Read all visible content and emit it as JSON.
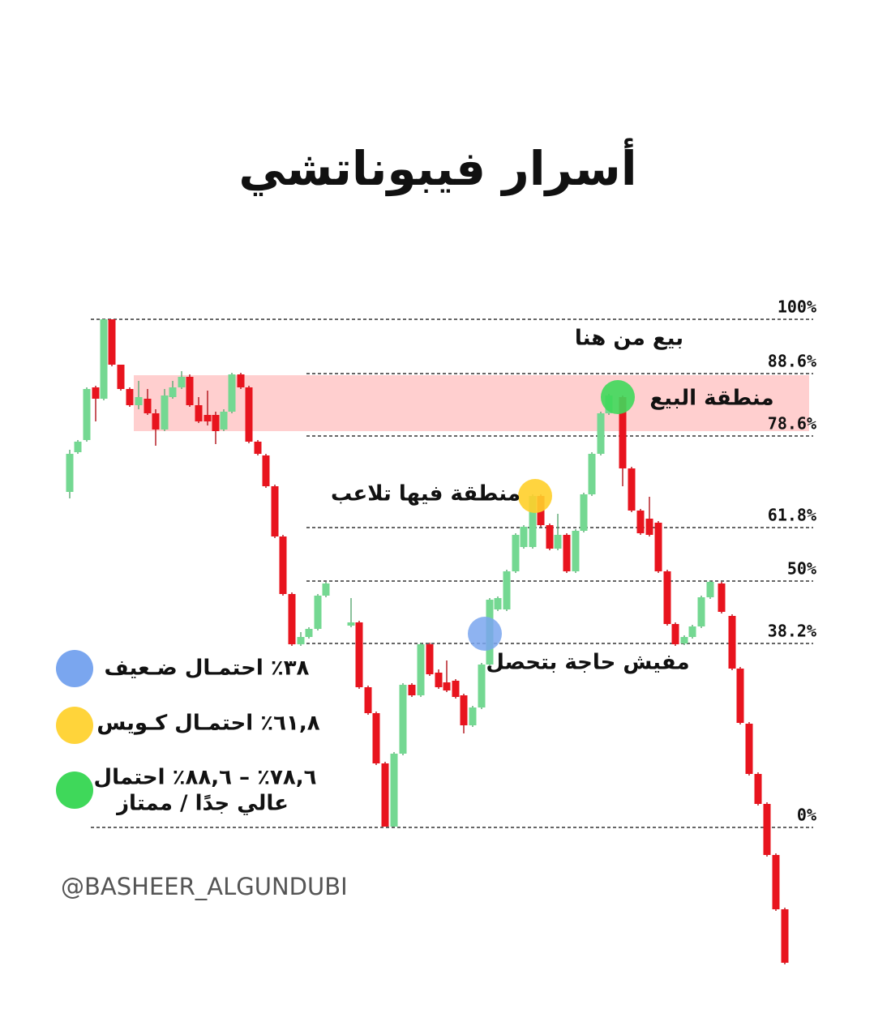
{
  "title": "أسرار فيبوناتشي",
  "fib_levels": [
    "100%",
    "88.6%",
    "78.6%",
    "61.8%",
    "50%",
    "38.2%",
    "0%"
  ],
  "annotations": [
    "بيع من هنا",
    "منطقة البيع",
    "منطقة فيها تلاعب",
    "مفيش حاجة بتحصل"
  ],
  "legend": [
    {
      "lines": [
        "٣٨٪ احتمـال ضـعيف"
      ]
    },
    {
      "lines": [
        "٦١,٨٪ احتمـال كـويس"
      ]
    },
    {
      "lines": [
        "٧٨,٦٪ – ٨٨,٦٪ احتمال",
        "عالي جدًا / ممتاز"
      ]
    }
  ],
  "watermark": "@BASHEER_ALGUNDUBI"
}
